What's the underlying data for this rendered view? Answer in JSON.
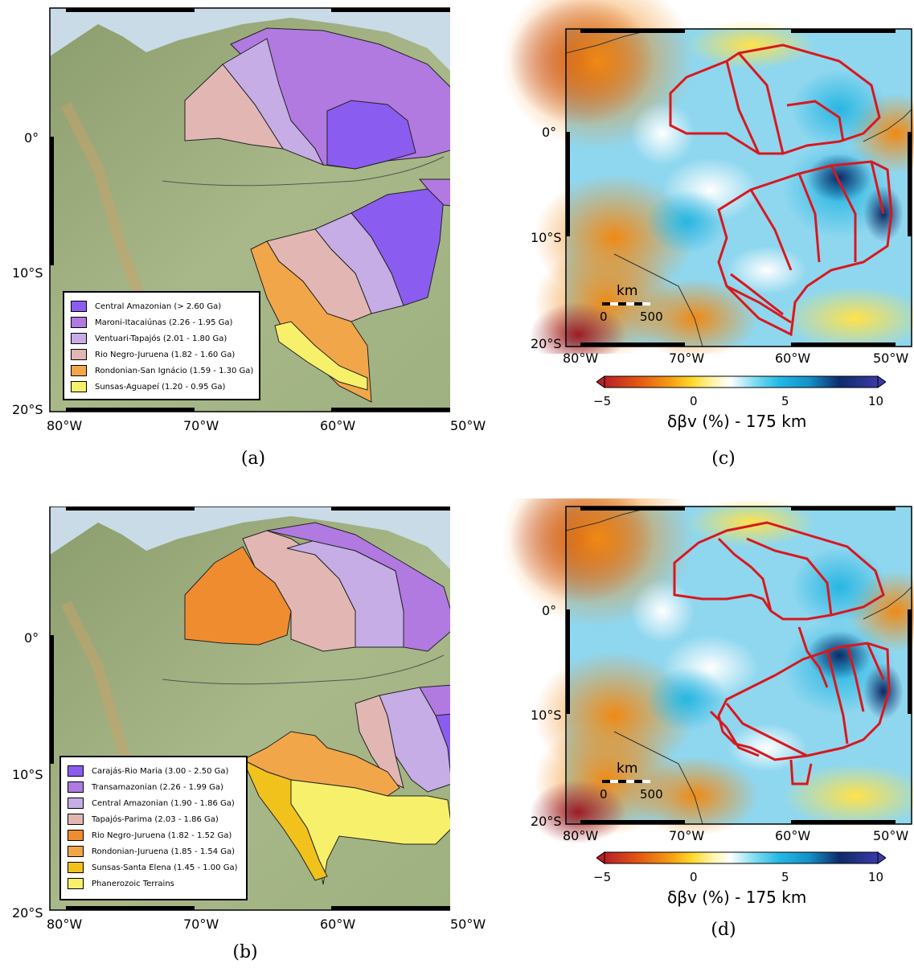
{
  "panels": {
    "a": {
      "label": "(a)",
      "lat_ticks": [
        "0°",
        "10°S",
        "20°S"
      ],
      "lon_ticks": [
        "80°W",
        "70°W",
        "60°W",
        "50°W"
      ],
      "legend": [
        {
          "text": "Central Amazonian (> 2.60 Ga)",
          "color": "#8b5cf0"
        },
        {
          "text": "Maroni-Itacaiúnas (2.26 - 1.95 Ga)",
          "color": "#b07ae0"
        },
        {
          "text": "Ventuari-Tapajós (2.01 - 1.80 Ga)",
          "color": "#c6ade6"
        },
        {
          "text": "Rio Negro-Juruena (1.82 - 1.60 Ga)",
          "color": "#e2b7b3"
        },
        {
          "text": "Rondonian-San Ignácio (1.59 - 1.30 Ga)",
          "color": "#f2a64a"
        },
        {
          "text": "Sunsas-Aguapeí (1.20 - 0.95 Ga)",
          "color": "#f7f06a"
        }
      ]
    },
    "b": {
      "label": "(b)",
      "lat_ticks": [
        "0°",
        "10°S",
        "20°S"
      ],
      "lon_ticks": [
        "80°W",
        "70°W",
        "60°W",
        "50°W"
      ],
      "legend": [
        {
          "text": "Carajás-Rio Maria (3.00 - 2.50 Ga)",
          "color": "#8b5cf0"
        },
        {
          "text": "Transamazonian (2.26 - 1.99 Ga)",
          "color": "#b07ae0"
        },
        {
          "text": "Central Amazonian (1.90 - 1.86 Ga)",
          "color": "#c6ade6"
        },
        {
          "text": "Tapajós-Parima (2.03 - 1.86 Ga)",
          "color": "#e2b7b3"
        },
        {
          "text": "Rio Negro-Juruena (1.82 - 1.52 Ga)",
          "color": "#f08c30"
        },
        {
          "text": "Rondonian-Juruena (1.85 - 1.54 Ga)",
          "color": "#f2a64a"
        },
        {
          "text": "Sunsas-Santa Elena (1.45 - 1.00 Ga)",
          "color": "#f2c21c"
        },
        {
          "text": "Phanerozoic Terrains",
          "color": "#f7f06a"
        }
      ]
    },
    "c": {
      "label": "(c)",
      "lat_ticks": [
        "0°",
        "10°S",
        "20°S"
      ],
      "lon_ticks": [
        "80°W",
        "70°W",
        "60°W",
        "50°W"
      ],
      "scale_unit": "km",
      "scale_ticks": [
        "0",
        "500"
      ],
      "colorbar": {
        "ticks": [
          "−5",
          "0",
          "5",
          "10"
        ],
        "min": -5,
        "max": 10
      },
      "colorbar_label": "δβv (%) - 175 km"
    },
    "d": {
      "label": "(d)",
      "lat_ticks": [
        "0°",
        "10°S",
        "20°S"
      ],
      "lon_ticks": [
        "80°W",
        "70°W",
        "60°W",
        "50°W"
      ],
      "scale_unit": "km",
      "scale_ticks": [
        "0",
        "500"
      ],
      "colorbar": {
        "ticks": [
          "−5",
          "0",
          "5",
          "10"
        ],
        "min": -5,
        "max": 10
      },
      "colorbar_label": "δβv (%) - 175 km"
    }
  },
  "colors": {
    "land": "#a7b78c",
    "ocean": "#c8d8e6",
    "outline": "#d8181e"
  }
}
